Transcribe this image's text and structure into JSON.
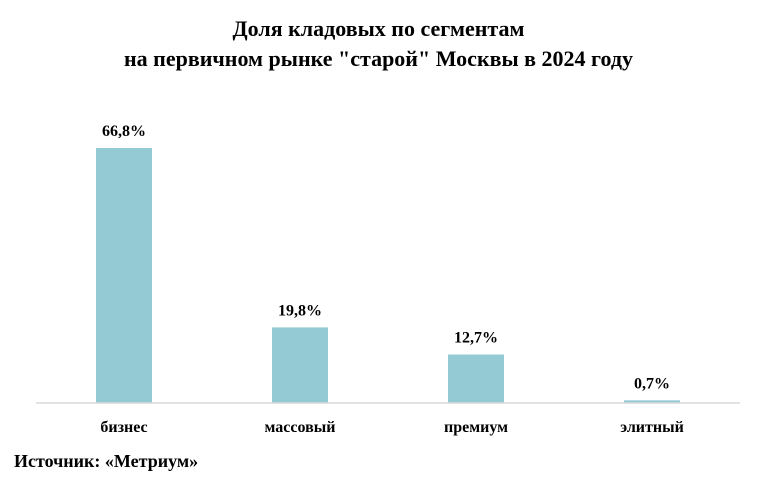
{
  "chart_data": {
    "type": "bar",
    "title_lines": [
      "Доля кладовых по сегментам",
      "на первичном рынке \"старой\" Москвы в 2024 году"
    ],
    "categories": [
      "бизнес",
      "массовый",
      "премиум",
      "элитный"
    ],
    "values": [
      66.8,
      19.8,
      12.7,
      0.7
    ],
    "data_labels": [
      "66,8%",
      "19,8%",
      "12,7%",
      "0,7%"
    ],
    "unit": "%",
    "ylim": [
      0,
      66.8
    ],
    "grid": false,
    "legend": "none",
    "bar_color": "#94cad3",
    "axis_color": "#d9d9d9"
  },
  "source": "Источник: «Метриум»"
}
